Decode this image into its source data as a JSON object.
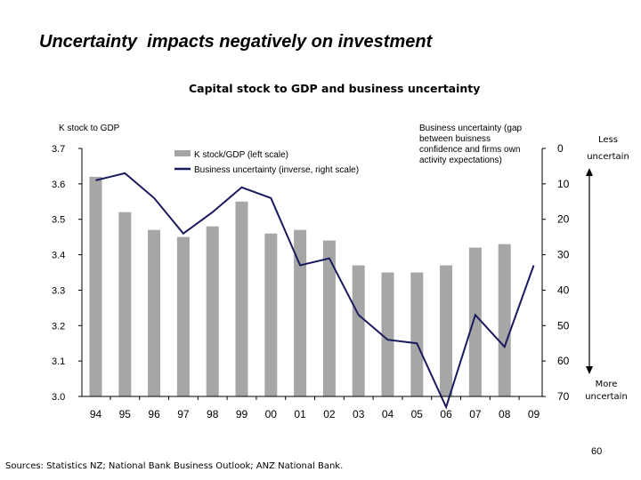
{
  "slide": {
    "title": "Uncertainty  impacts negatively on investment",
    "page_number": "60",
    "sources": "Sources: Statistics NZ; National Bank Business Outlook; ANZ National Bank."
  },
  "chart_data": {
    "type": "bar",
    "title": "Capital stock to GDP and business uncertainty",
    "categories": [
      "94",
      "95",
      "96",
      "97",
      "98",
      "99",
      "00",
      "01",
      "02",
      "03",
      "04",
      "05",
      "06",
      "07",
      "08",
      "09"
    ],
    "series": [
      {
        "name": "K stock/GDP (left scale)",
        "type": "bar",
        "axis": "left",
        "color": "#a6a6a6",
        "values": [
          3.62,
          3.52,
          3.47,
          3.45,
          3.48,
          3.55,
          3.46,
          3.47,
          3.44,
          3.37,
          3.35,
          3.35,
          3.37,
          3.42,
          3.43,
          null
        ]
      },
      {
        "name": "Business uncertainty (inverse, right scale)",
        "type": "line",
        "axis": "right",
        "color": "#1a1a5e",
        "points": [
          [
            0.0,
            9
          ],
          [
            1.0,
            7
          ],
          [
            2.0,
            14
          ],
          [
            3.0,
            24
          ],
          [
            4.0,
            18
          ],
          [
            5.0,
            11
          ],
          [
            6.0,
            14
          ],
          [
            7.0,
            33
          ],
          [
            8.0,
            31
          ],
          [
            9.0,
            47
          ],
          [
            10.0,
            54
          ],
          [
            11.0,
            55
          ],
          [
            12.0,
            73
          ],
          [
            13.0,
            47
          ],
          [
            14.0,
            56
          ],
          [
            15.0,
            33
          ]
        ]
      }
    ],
    "left_axis": {
      "label": "K stock to GDP",
      "ylim": [
        3.0,
        3.7
      ],
      "ticks": [
        "3.7",
        "3.6",
        "3.5",
        "3.4",
        "3.3",
        "3.2",
        "3.1",
        "3.0"
      ]
    },
    "right_axis": {
      "label": "Business  uncertainty (gap between buisness confidence and firms own activity expectations)",
      "label_lines": [
        "Business  uncertainty (gap",
        "between buisness",
        "confidence and firms own",
        "activity expectations)"
      ],
      "ylim": [
        0,
        70
      ],
      "inverted": true,
      "ticks": [
        "0",
        "10",
        "20",
        "30",
        "40",
        "50",
        "60",
        "70"
      ]
    },
    "annotations": {
      "top_lines": [
        "Less",
        "uncertain"
      ],
      "bottom_lines": [
        "More",
        "uncertain"
      ]
    },
    "legend_position": "top-center",
    "grid": false
  }
}
